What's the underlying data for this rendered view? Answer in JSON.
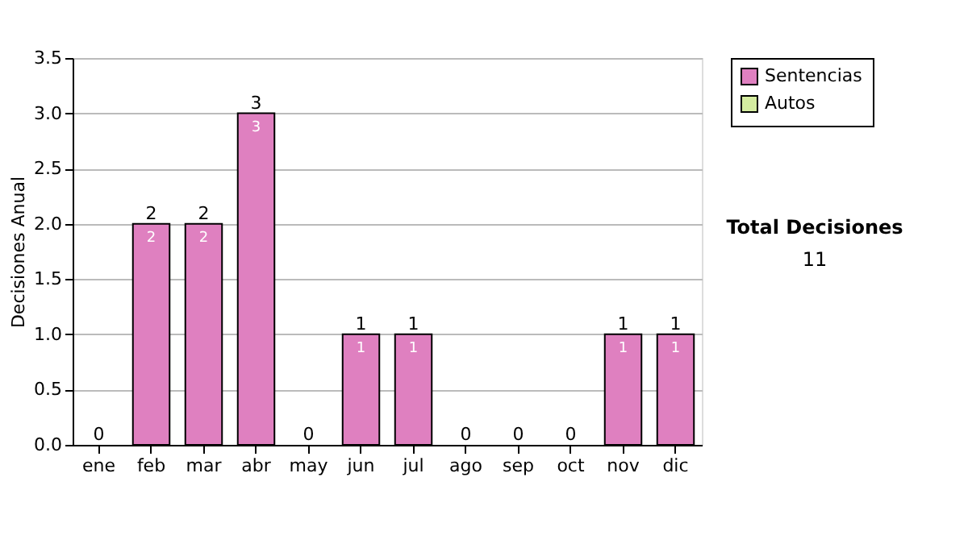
{
  "chart_data": {
    "type": "bar",
    "stacked": true,
    "ylabel": "Decisiones Anual",
    "categories": [
      "ene",
      "feb",
      "mar",
      "abr",
      "may",
      "jun",
      "jul",
      "ago",
      "sep",
      "oct",
      "nov",
      "dic"
    ],
    "series": [
      {
        "name": "Sentencias",
        "color": "#df80c0",
        "values": [
          0,
          2,
          2,
          3,
          0,
          1,
          1,
          0,
          0,
          0,
          1,
          1
        ],
        "value_labels": [
          null,
          "2",
          "2",
          "3",
          null,
          "1",
          "1",
          null,
          null,
          null,
          "1",
          "1"
        ]
      },
      {
        "name": "Autos",
        "color": "#d4eca0",
        "values": [
          0,
          0,
          0,
          0,
          0,
          0,
          0,
          0,
          0,
          0,
          0,
          0
        ]
      }
    ],
    "totals": [
      "0",
      "2",
      "2",
      "3",
      "0",
      "1",
      "1",
      "0",
      "0",
      "0",
      "1",
      "1"
    ],
    "ylim": [
      0,
      3.5
    ],
    "yticks": [
      {
        "value": 0,
        "label": "0.0"
      },
      {
        "value": 0.5,
        "label": "0.5"
      },
      {
        "value": 1,
        "label": "1.0"
      },
      {
        "value": 1.5,
        "label": "1.5"
      },
      {
        "value": 2,
        "label": "2.0"
      },
      {
        "value": 2.5,
        "label": "2.5"
      },
      {
        "value": 3,
        "label": "3.0"
      },
      {
        "value": 3.5,
        "label": "3.5"
      }
    ],
    "grid": "y",
    "legend": "right",
    "annotations": [
      "Total Decisiones",
      "11"
    ]
  }
}
